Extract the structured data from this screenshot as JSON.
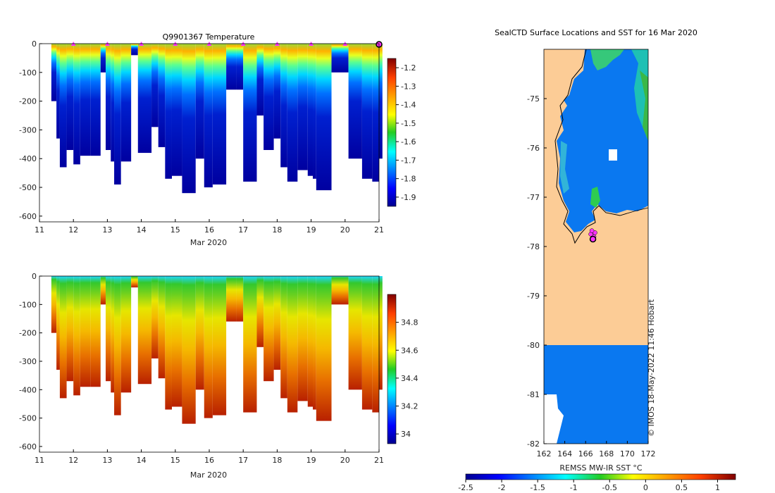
{
  "chart_data": [
    {
      "type": "heatmap",
      "title": "Q9901367  Temperature",
      "xlabel": "Mar 2020",
      "ylabel": "",
      "xlim": [
        11,
        21
      ],
      "ylim": [
        -620,
        0
      ],
      "x_ticks": [
        "11",
        "12",
        "13",
        "14",
        "15",
        "16",
        "17",
        "18",
        "19",
        "20",
        "21"
      ],
      "y_ticks": [
        "0",
        "-100",
        "-200",
        "-300",
        "-400",
        "-500",
        "-600"
      ],
      "colorbar": {
        "min": -1.95,
        "max": -1.15,
        "ticks": [
          "-1.2",
          "-1.3",
          "-1.4",
          "-1.5",
          "-1.6",
          "-1.7",
          "-1.8",
          "-1.9"
        ]
      },
      "surface_marker_days": [
        12,
        13,
        14,
        15,
        16,
        17,
        18,
        19,
        20,
        21
      ],
      "profile_max_depths": [
        {
          "day": 11.35,
          "depth": 200
        },
        {
          "day": 11.5,
          "depth": 330
        },
        {
          "day": 11.6,
          "depth": 430
        },
        {
          "day": 11.8,
          "depth": 370
        },
        {
          "day": 12.0,
          "depth": 420
        },
        {
          "day": 12.2,
          "depth": 390
        },
        {
          "day": 12.5,
          "depth": 390
        },
        {
          "day": 12.8,
          "depth": 100
        },
        {
          "day": 12.95,
          "depth": 370
        },
        {
          "day": 13.1,
          "depth": 410
        },
        {
          "day": 13.2,
          "depth": 490
        },
        {
          "day": 13.4,
          "depth": 410
        },
        {
          "day": 13.7,
          "depth": 40
        },
        {
          "day": 13.9,
          "depth": 380
        },
        {
          "day": 14.3,
          "depth": 290
        },
        {
          "day": 14.5,
          "depth": 360
        },
        {
          "day": 14.7,
          "depth": 470
        },
        {
          "day": 14.9,
          "depth": 460
        },
        {
          "day": 15.2,
          "depth": 520
        },
        {
          "day": 15.6,
          "depth": 400
        },
        {
          "day": 15.85,
          "depth": 500
        },
        {
          "day": 16.1,
          "depth": 490
        },
        {
          "day": 16.5,
          "depth": 160
        },
        {
          "day": 16.8,
          "depth": 160
        },
        {
          "day": 17.0,
          "depth": 480
        },
        {
          "day": 17.4,
          "depth": 250
        },
        {
          "day": 17.6,
          "depth": 370
        },
        {
          "day": 17.9,
          "depth": 330
        },
        {
          "day": 18.1,
          "depth": 430
        },
        {
          "day": 18.3,
          "depth": 480
        },
        {
          "day": 18.6,
          "depth": 440
        },
        {
          "day": 18.9,
          "depth": 460
        },
        {
          "day": 19.05,
          "depth": 470
        },
        {
          "day": 19.15,
          "depth": 510
        },
        {
          "day": 19.6,
          "depth": 100
        },
        {
          "day": 20.1,
          "depth": 400
        },
        {
          "day": 20.5,
          "depth": 470
        },
        {
          "day": 20.8,
          "depth": 480
        },
        {
          "day": 21.0,
          "depth": 400
        }
      ]
    },
    {
      "type": "heatmap",
      "title": "",
      "xlabel": "Mar 2020",
      "ylabel": "",
      "xlim": [
        11,
        21
      ],
      "ylim": [
        -620,
        0
      ],
      "x_ticks": [
        "11",
        "12",
        "13",
        "14",
        "15",
        "16",
        "17",
        "18",
        "19",
        "20",
        "21"
      ],
      "y_ticks": [
        "0",
        "-100",
        "-200",
        "-300",
        "-400",
        "-500",
        "-600"
      ],
      "colorbar": {
        "min": 33.93,
        "max": 35.0,
        "ticks": [
          "34.8",
          "34.6",
          "34.4",
          "34.2",
          "34"
        ]
      }
    },
    {
      "type": "heatmap",
      "title": "SealCTD Surface Locations and SST for 16 Mar 2020",
      "xlabel": "",
      "ylabel": "",
      "xlim": [
        162,
        172
      ],
      "ylim": [
        -82,
        -74
      ],
      "x_ticks": [
        "162",
        "164",
        "166",
        "168",
        "170",
        "172"
      ],
      "y_ticks": [
        "-75",
        "-76",
        "-77",
        "-78",
        "-79",
        "-80",
        "-81",
        "-82"
      ],
      "colorbar": {
        "label": "REMSS MW-IR SST °C",
        "min": -2.5,
        "max": 1.25,
        "ticks": [
          "-2.5",
          "-2",
          "-1.5",
          "-1",
          "-0.5",
          "0",
          "0.5",
          "1"
        ]
      },
      "ctd_positions": [
        {
          "lon": 166.5,
          "lat": -77.75
        },
        {
          "lon": 166.8,
          "lat": -77.8
        },
        {
          "lon": 166.9,
          "lat": -77.72
        },
        {
          "lon": 166.6,
          "lat": -77.68
        },
        {
          "lon": 166.7,
          "lat": -77.85
        }
      ],
      "credit": "© IMOS 18-May-2022 11:46 Hobart"
    }
  ],
  "colors": {
    "land": "#fccc96",
    "sst_ocean": "#0a78f0",
    "marker": "#ff33ff"
  }
}
